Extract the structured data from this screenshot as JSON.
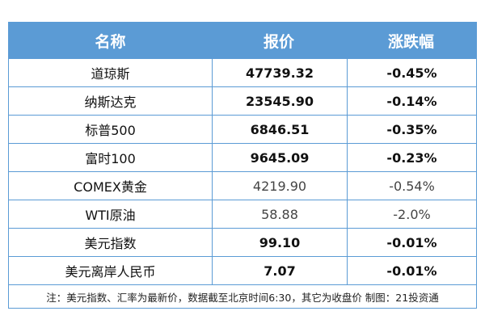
{
  "header": {
    "name": "名称",
    "price": "报价",
    "change": "涨跌幅"
  },
  "rows": [
    {
      "name": "道琼斯",
      "price": "47739.32",
      "change": "-0.45%",
      "bold": true
    },
    {
      "name": "纳斯达克",
      "price": "23545.90",
      "change": "-0.14%",
      "bold": true
    },
    {
      "name": "标普500",
      "price": "6846.51",
      "change": "-0.35%",
      "bold": true
    },
    {
      "name": "富时100",
      "price": "9645.09",
      "change": "-0.23%",
      "bold": true
    },
    {
      "name": "COMEX黄金",
      "price": "4219.90",
      "change": "-0.54%",
      "bold": false
    },
    {
      "name": "WTI原油",
      "price": "58.88",
      "change": "-2.0%",
      "bold": false
    },
    {
      "name": "美元指数",
      "price": "99.10",
      "change": "-0.01%",
      "bold": true
    },
    {
      "name": "美元离岸人民币",
      "price": "7.07",
      "change": "-0.01%",
      "bold": true
    }
  ],
  "note": "注：美元指数、汇率为最新价，数据截至北京时间6:30，其它为收盘价 制图：21投资通",
  "colors": {
    "header_bg": "#5b9bd5",
    "border": "#5b9bd5"
  }
}
